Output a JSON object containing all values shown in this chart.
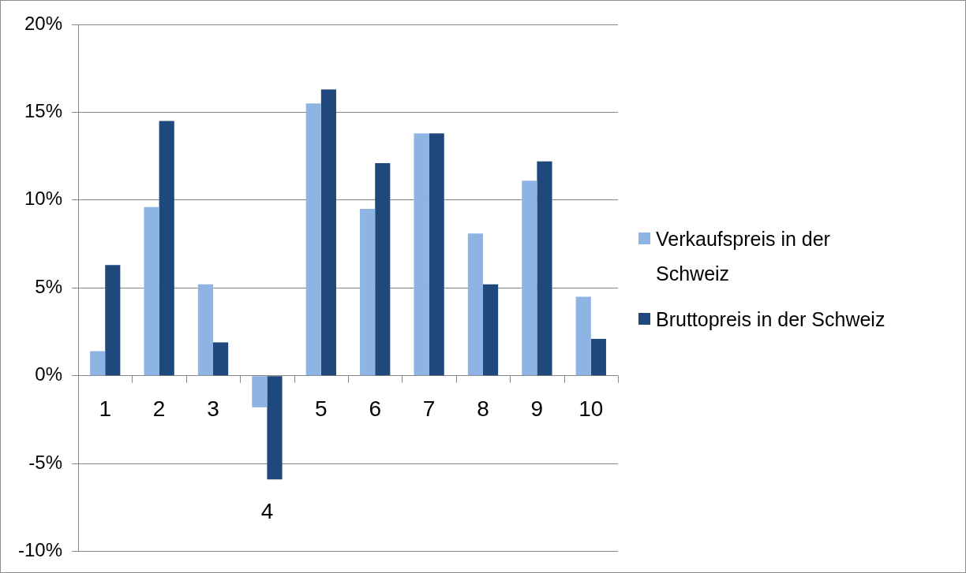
{
  "chart_data": {
    "type": "bar",
    "categories": [
      "1",
      "2",
      "3",
      "4",
      "5",
      "6",
      "7",
      "8",
      "9",
      "10"
    ],
    "series": [
      {
        "name": "Verkaufspreis in der Schweiz",
        "color": "#8eb4e3",
        "values": [
          1.4,
          9.6,
          5.2,
          -1.8,
          15.5,
          9.5,
          13.8,
          8.1,
          11.1,
          4.5
        ]
      },
      {
        "name": "Bruttopreis in der Schweiz",
        "color": "#1f497d",
        "values": [
          6.3,
          14.5,
          1.9,
          -5.9,
          16.3,
          12.1,
          13.8,
          5.2,
          12.2,
          2.1
        ]
      }
    ],
    "ylim": [
      -10,
      20
    ],
    "yticks": [
      {
        "value": -10,
        "label": "-10%"
      },
      {
        "value": -5,
        "label": "-5%"
      },
      {
        "value": 0,
        "label": "0%"
      },
      {
        "value": 5,
        "label": "5%"
      },
      {
        "value": 10,
        "label": "10%"
      },
      {
        "value": 15,
        "label": "15%"
      },
      {
        "value": 20,
        "label": "20%"
      }
    ],
    "grid": "y",
    "legend": "right"
  }
}
